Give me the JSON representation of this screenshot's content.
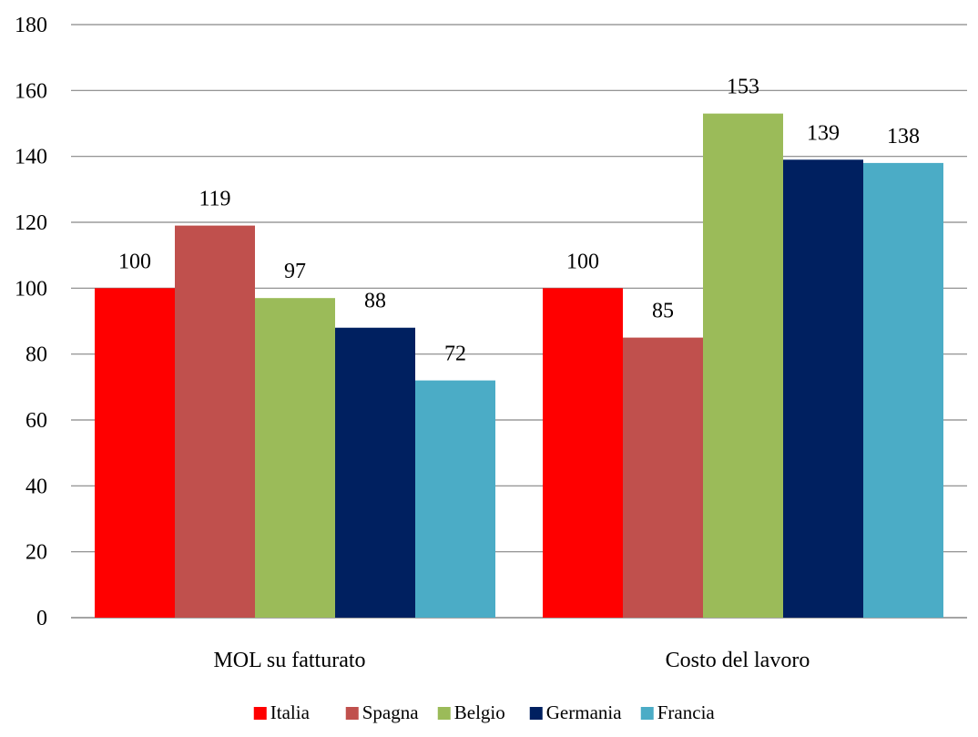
{
  "chart_data": {
    "type": "bar",
    "categories": [
      "MOL su fatturato",
      "Costo del lavoro"
    ],
    "series": [
      {
        "name": "Italia",
        "values": [
          100,
          100
        ],
        "color": "#ff0000"
      },
      {
        "name": "Spagna",
        "values": [
          119,
          85
        ],
        "color": "#c0504d"
      },
      {
        "name": "Belgio",
        "values": [
          97,
          153
        ],
        "color": "#9bbb59"
      },
      {
        "name": "Germania",
        "values": [
          88,
          139
        ],
        "color": "#002060"
      },
      {
        "name": "Francia",
        "values": [
          72,
          138
        ],
        "color": "#4bacc6"
      }
    ],
    "ylim": [
      0,
      180
    ],
    "yticks": [
      0,
      20,
      40,
      60,
      80,
      100,
      120,
      140,
      160,
      180
    ],
    "grid": true,
    "legend_position": "bottom",
    "data_labels": true,
    "gridline_color": "#868686",
    "axis_color": "#868686"
  }
}
